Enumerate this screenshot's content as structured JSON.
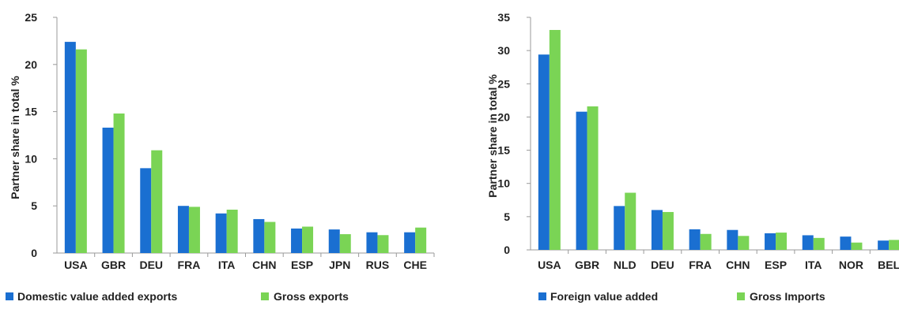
{
  "colors": {
    "series1": "#1a6fd1",
    "series2": "#7ad455",
    "axis": "#9a9a9a",
    "text": "#222222"
  },
  "chart_data": [
    {
      "type": "bar",
      "ylabel": "Partner share in total %",
      "ylim": [
        0,
        25
      ],
      "yticks": [
        0,
        5,
        10,
        15,
        20,
        25
      ],
      "grid": false,
      "legend_position": "bottom",
      "categories": [
        "USA",
        "GBR",
        "DEU",
        "FRA",
        "ITA",
        "CHN",
        "ESP",
        "JPN",
        "RUS",
        "CHE"
      ],
      "series": [
        {
          "name": "Domestic value added exports",
          "values": [
            22.4,
            13.3,
            9.0,
            5.0,
            4.2,
            3.6,
            2.6,
            2.5,
            2.2,
            2.2
          ]
        },
        {
          "name": "Gross exports",
          "values": [
            21.6,
            14.8,
            10.9,
            4.9,
            4.6,
            3.3,
            2.8,
            2.0,
            1.9,
            2.7
          ]
        }
      ]
    },
    {
      "type": "bar",
      "ylabel": "Partner share in total %",
      "ylim": [
        0,
        35
      ],
      "yticks": [
        0,
        5,
        10,
        15,
        20,
        25,
        30,
        35
      ],
      "grid": false,
      "legend_position": "bottom",
      "categories": [
        "USA",
        "GBR",
        "NLD",
        "DEU",
        "FRA",
        "CHN",
        "ESP",
        "ITA",
        "NOR",
        "BEL"
      ],
      "series": [
        {
          "name": "Foreign value added",
          "values": [
            29.4,
            20.8,
            6.6,
            6.0,
            3.1,
            3.0,
            2.5,
            2.2,
            2.0,
            1.4
          ]
        },
        {
          "name": "Gross Imports",
          "values": [
            33.1,
            21.6,
            8.6,
            5.7,
            2.4,
            2.1,
            2.6,
            1.8,
            1.1,
            1.5
          ]
        }
      ]
    }
  ]
}
